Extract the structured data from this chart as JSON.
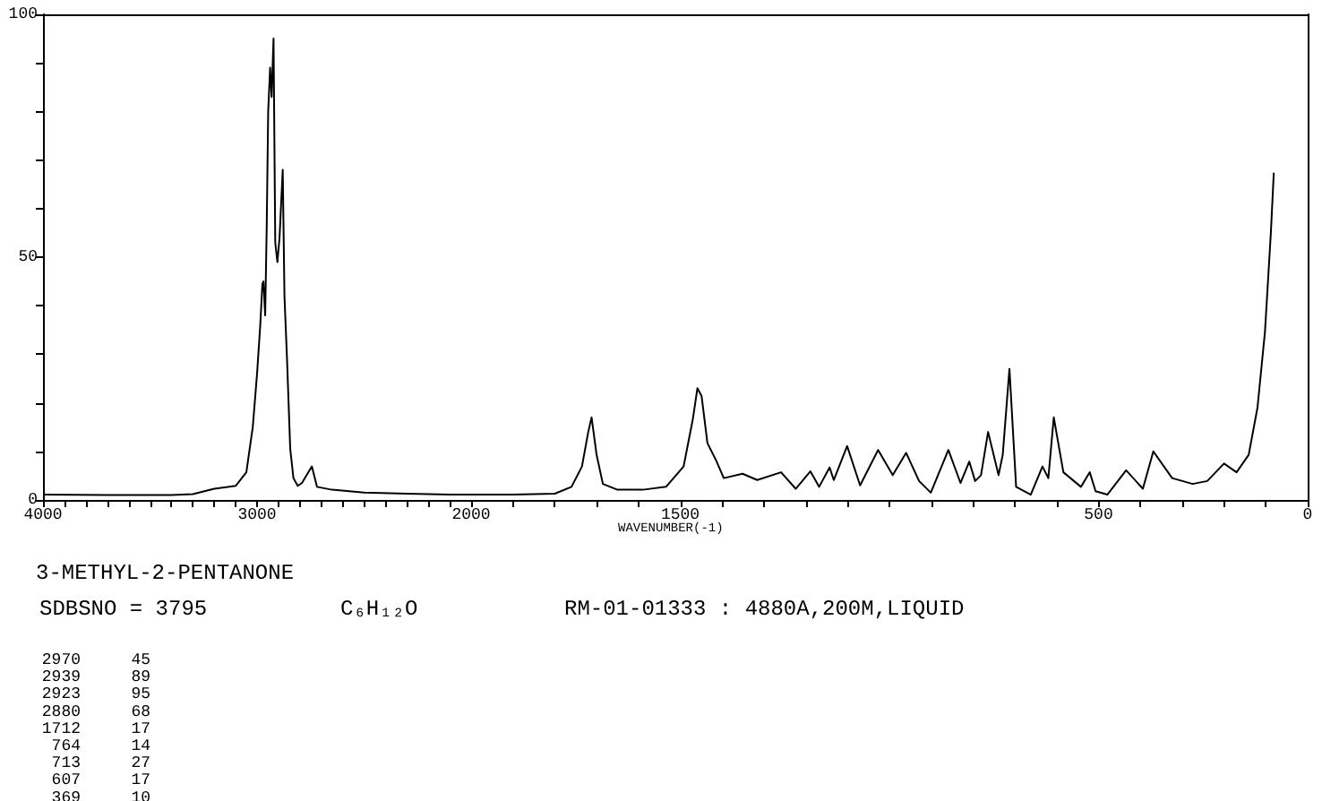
{
  "chart_data": [
    {
      "type": "line",
      "title": "3-METHYL-2-PENTANONE",
      "annotations": [
        "SDBSNO = 3795",
        "C₆H₁₂O",
        "RM-01-01333 : 4880A,200M,LIQUID",
        "2970 45",
        "2939 89",
        "2923 95",
        "2880 68",
        "1712 17",
        "764 14",
        "713 27",
        "607 17",
        "369 10"
      ],
      "series": [
        {
          "color": "#000000",
          "x": [
            4000,
            3700,
            3400,
            3300,
            3200,
            3100,
            3050,
            3020,
            3000,
            2985,
            2975,
            2970,
            2962,
            2955,
            2948,
            2939,
            2932,
            2923,
            2915,
            2905,
            2895,
            2880,
            2872,
            2860,
            2845,
            2830,
            2810,
            2790,
            2744,
            2720,
            2650,
            2500,
            2300,
            2100,
            2000
          ],
          "values": [
            1.1,
            1.0,
            1.0,
            1.2,
            2.3,
            2.9,
            5.7,
            15,
            26,
            36,
            44.5,
            45,
            38,
            56,
            80,
            89,
            83,
            95,
            53,
            49,
            54,
            68,
            42,
            29,
            10.5,
            4.5,
            2.9,
            3.5,
            6.9,
            2.7,
            2.1,
            1.5,
            1.3,
            1.1,
            1.1
          ]
        }
      ],
      "xlim": [
        4000,
        2000
      ],
      "xticks": [
        4000,
        {
          "value": 3900,
          "label": null
        },
        {
          "value": 3800,
          "label": null
        },
        {
          "value": 3700,
          "label": null
        },
        {
          "value": 3600,
          "label": null
        },
        {
          "value": 3500,
          "label": null
        },
        {
          "value": 3400,
          "label": null
        },
        {
          "value": 3300,
          "label": null
        },
        {
          "value": 3200,
          "label": null
        },
        {
          "value": 3100,
          "label": null
        },
        3000,
        {
          "value": 2900,
          "label": null
        },
        {
          "value": 2800,
          "label": null
        },
        {
          "value": 2700,
          "label": null
        },
        {
          "value": 2600,
          "label": null
        },
        {
          "value": 2500,
          "label": null
        },
        {
          "value": 2400,
          "label": null
        },
        {
          "value": 2300,
          "label": null
        },
        {
          "value": 2200,
          "label": null
        },
        {
          "value": 2100,
          "label": null
        },
        2000
      ],
      "ylim": [
        0,
        100
      ],
      "yticks": [
        0,
        {
          "value": 10,
          "label": null
        },
        {
          "value": 20,
          "label": null
        },
        {
          "value": 30,
          "label": null
        },
        {
          "value": 40,
          "label": null
        },
        50,
        {
          "value": 60,
          "label": null
        },
        {
          "value": 70,
          "label": null
        },
        {
          "value": 80,
          "label": null
        },
        {
          "value": 90,
          "label": null
        },
        100
      ]
    },
    {
      "type": "line",
      "xlabel": "WAVENUMBER(-1)",
      "series": [
        {
          "color": "#000000",
          "x": [
            2000,
            1900,
            1800,
            1760,
            1735,
            1720,
            1712,
            1700,
            1685,
            1650,
            1590,
            1534,
            1492,
            1470,
            1459,
            1449,
            1435,
            1414,
            1396,
            1351,
            1316,
            1259,
            1224,
            1189,
            1168,
            1143,
            1133,
            1101,
            1070,
            1027,
            992,
            960,
            929,
            901,
            859,
            830,
            809,
            795,
            781,
            764,
            739,
            729,
            713,
            697,
            662,
            634,
            620,
            607,
            584,
            542,
            521,
            507,
            479,
            434,
            394,
            369,
            324,
            275,
            240,
            200,
            170,
            141,
            120,
            102,
            88,
            81
          ],
          "values": [
            1.1,
            1.1,
            1.3,
            2.7,
            6.9,
            14,
            17,
            9.3,
            3.3,
            2.1,
            2.1,
            2.7,
            6.9,
            16.6,
            23,
            21.4,
            11.7,
            8.1,
            4.5,
            5.4,
            4.1,
            5.7,
            2.3,
            5.9,
            2.7,
            6.7,
            4.1,
            11.1,
            3.0,
            10.3,
            5.1,
            9.7,
            3.9,
            1.5,
            10.3,
            3.5,
            7.9,
            3.9,
            5.1,
            14,
            5.1,
            9.3,
            27,
            2.7,
            1.1,
            6.9,
            4.5,
            17,
            5.7,
            2.7,
            5.7,
            1.8,
            1.1,
            6.1,
            2.3,
            10,
            4.5,
            3.3,
            3.9,
            7.5,
            5.7,
            9.3,
            19,
            34.7,
            55,
            67.4
          ]
        }
      ],
      "xlim": [
        2000,
        0
      ],
      "xticks": [
        {
          "value": 2000,
          "label": null
        },
        {
          "value": 1900,
          "label": null
        },
        {
          "value": 1800,
          "label": null
        },
        {
          "value": 1700,
          "label": null
        },
        {
          "value": 1600,
          "label": null
        },
        1500,
        {
          "value": 1400,
          "label": null
        },
        {
          "value": 1300,
          "label": null
        },
        {
          "value": 1200,
          "label": null
        },
        {
          "value": 1100,
          "label": null
        },
        {
          "value": 1000,
          "label": null
        },
        {
          "value": 900,
          "label": null
        },
        {
          "value": 800,
          "label": null
        },
        {
          "value": 700,
          "label": null
        },
        {
          "value": 600,
          "label": null
        },
        500,
        {
          "value": 400,
          "label": null
        },
        {
          "value": 300,
          "label": null
        },
        {
          "value": 200,
          "label": null
        },
        {
          "value": 100,
          "label": null
        },
        0
      ],
      "ylim": [
        0,
        100
      ],
      "tick_labels": "x"
    }
  ]
}
